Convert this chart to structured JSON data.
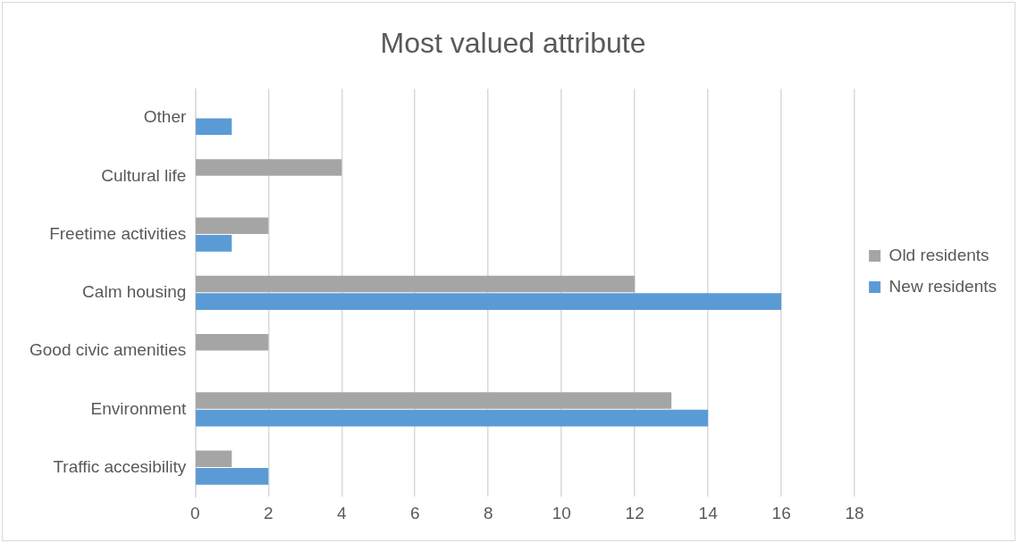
{
  "chart_data": {
    "type": "bar",
    "title": "Most valued attribute",
    "orientation": "horizontal",
    "categories": [
      "Other",
      "Cultural life",
      "Freetime activities",
      "Calm housing",
      "Good civic amenities",
      "Environment",
      "Traffic accesibility"
    ],
    "series": [
      {
        "name": "Old residents",
        "color": "#a5a5a5",
        "values": [
          null,
          4,
          2,
          12,
          2,
          13,
          1
        ]
      },
      {
        "name": "New residents",
        "color": "#5b9bd5",
        "values": [
          1,
          null,
          1,
          16,
          null,
          14,
          2
        ]
      }
    ],
    "xlim": [
      0,
      18
    ],
    "xticks": [
      0,
      2,
      4,
      6,
      8,
      10,
      12,
      14,
      16,
      18
    ],
    "grid": "x",
    "legend": "right"
  }
}
